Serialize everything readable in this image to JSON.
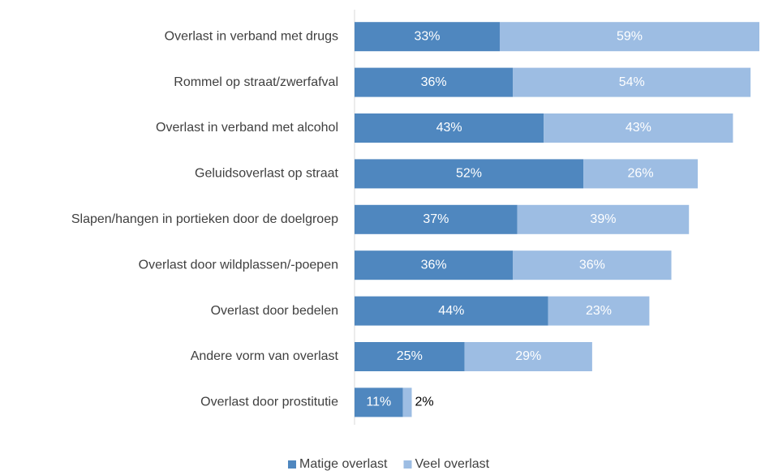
{
  "chart_data": {
    "type": "stacked-bar-horizontal",
    "categories": [
      "Overlast in verband met drugs",
      "Rommel op straat/zwerfafval",
      "Overlast in verband met alcohol",
      "Geluidsoverlast op straat",
      "Slapen/hangen in portieken door de doelgroep",
      "Overlast door wildplassen/-poepen",
      "Overlast door bedelen",
      "Andere vorm van overlast",
      "Overlast door prostitutie"
    ],
    "series": [
      {
        "name": "Matige overlast",
        "color": "#4f87bf",
        "values": [
          33,
          36,
          43,
          52,
          37,
          36,
          44,
          25,
          11
        ],
        "value_labels": [
          "33%",
          "36%",
          "43%",
          "52%",
          "37%",
          "36%",
          "44%",
          "25%",
          "11%"
        ]
      },
      {
        "name": "Veel overlast",
        "color": "#9dbde3",
        "values": [
          59,
          54,
          43,
          26,
          39,
          36,
          23,
          29,
          2
        ],
        "value_labels": [
          "59%",
          "54%",
          "43%",
          "26%",
          "39%",
          "36%",
          "23%",
          "29%",
          "2%"
        ]
      }
    ]
  }
}
